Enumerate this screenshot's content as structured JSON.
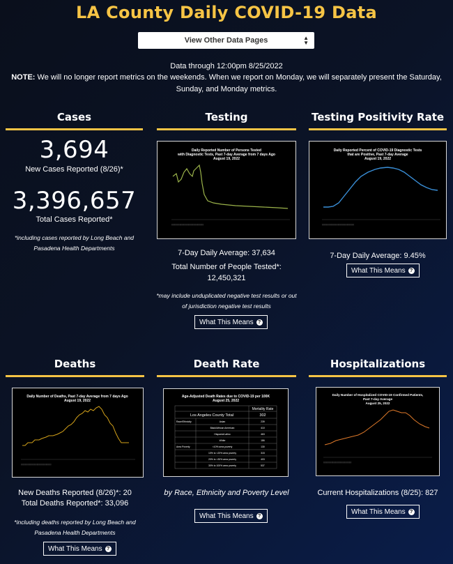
{
  "page_title": "LA County Daily COVID-19 Data",
  "select": {
    "value": "View Other Data Pages",
    "arrow": "up-down-arrow-icon"
  },
  "data_through": "Data through 12:00pm 8/25/2022",
  "note_label": "NOTE:",
  "note_text": "We will no longer report metrics on the weekends. When we report on Monday, we will separately present the Saturday, Sunday, and Monday metrics.",
  "sections": {
    "cases": {
      "title": "Cases",
      "new_value": "3,694",
      "new_label": "New Cases Reported (8/26)*",
      "total_value": "3,396,657",
      "total_label": "Total Cases Reported*",
      "footnote": "*including cases reported by Long Beach and Pasadena Health Departments"
    },
    "testing": {
      "title": "Testing",
      "chart_title": "Daily Reported Number of Persons Tested with Diagnostic Tests, Past 7-day Average from 7 days Ago",
      "chart_date": "August 19, 2022",
      "avg": "7-Day Daily Average: 37,634",
      "total": "Total Number of People Tested*: 12,450,321",
      "footnote": "*may include unduplicated negative test results or out of jurisdiction negative test results",
      "button": "What This Means"
    },
    "positivity": {
      "title": "Testing Positivity Rate",
      "chart_title": "Daily Reported Percent of COVID-19 Diagnostic Tests that are Positive, Past 7-day Average",
      "chart_date": "August 19, 2022",
      "avg": "7-Day Daily Average: 9.45%",
      "button": "What This Means"
    },
    "deaths": {
      "title": "Deaths",
      "chart_title": "Daily Number of Deaths, Past 7-day Average from 7 days Ago",
      "chart_date": "August 19, 2022",
      "new": "New Deaths Reported (8/26)*: 20",
      "total": "Total Deaths Reported*: 33,096",
      "footnote": "*including deaths reported by Long Beach and Pasadena Health Departments",
      "button": "What This Means"
    },
    "death_rate": {
      "title": "Death Rate",
      "chart_title": "Age-Adjusted Death Rates due to COVID-19 per 100K",
      "chart_date": "August 25, 2022",
      "table_header": "Mortality Rate",
      "table_total_label": "Los Angeles County Total",
      "table_total_value": "302",
      "rows": [
        {
          "group": "Race/Ethnicity",
          "label": "Asian",
          "value": "239"
        },
        {
          "group": "",
          "label": "Black/African American",
          "value": "410"
        },
        {
          "group": "",
          "label": "Hispanic/Latino",
          "value": "463"
        },
        {
          "group": "",
          "label": "White",
          "value": "186"
        },
        {
          "group": "Area Poverty",
          "label": "<10% area poverty",
          "value": "130"
        },
        {
          "group": "",
          "label": "10% to <20% area poverty",
          "value": "315"
        },
        {
          "group": "",
          "label": "20% to <30% area poverty",
          "value": "403"
        },
        {
          "group": "",
          "label": "30% to 100% area poverty",
          "value": "537"
        }
      ],
      "caption": "by Race, Ethnicity and Poverty Level",
      "button": "What This Means"
    },
    "hosp": {
      "title": "Hospitalizations",
      "chart_title": "Daily Number of Hospitalized COVID-19 Confirmed Patients, Past 7-day Average",
      "chart_date": "August 25, 2022",
      "current": "Current Hospitalizations (8/25): 827",
      "button": "What This Means"
    }
  },
  "colors": {
    "accent": "#f6c445",
    "testing_line": "#9bb34a",
    "positivity_line": "#3a8fd8",
    "deaths_line": "#d4a21a",
    "hosp_line": "#e07a2a"
  },
  "icons": {
    "help": "question-circle-icon"
  }
}
